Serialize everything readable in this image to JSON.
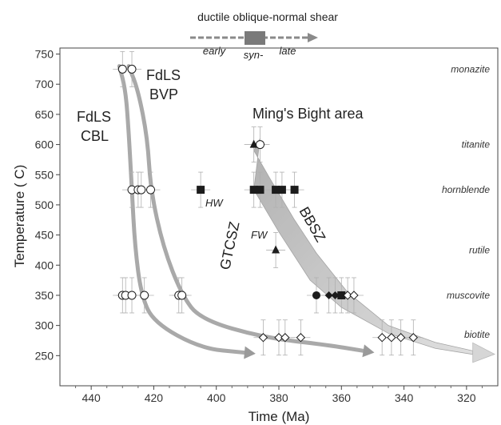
{
  "chart_data": {
    "type": "scatter",
    "title": "",
    "xlabel": "Time (Ma)",
    "ylabel": "Temperature ( C)",
    "xlim": [
      450,
      310
    ],
    "ylim": [
      200,
      760
    ],
    "x_reversed": true,
    "xticks": [
      440,
      420,
      400,
      380,
      360,
      340,
      320
    ],
    "yticks": [
      250,
      300,
      350,
      400,
      450,
      500,
      550,
      600,
      650,
      700,
      750
    ],
    "xtick_labels": [
      "440",
      "420",
      "400",
      "380",
      "360",
      "340",
      "320"
    ],
    "ytick_labels": [
      "250",
      "300",
      "350",
      "400",
      "450",
      "500",
      "550",
      "600",
      "650",
      "700",
      "750"
    ],
    "minerals": [
      {
        "label": "monazite",
        "y": 725
      },
      {
        "label": "titanite",
        "y": 600
      },
      {
        "label": "hornblende",
        "y": 525
      },
      {
        "label": "rutile",
        "y": 425
      },
      {
        "label": "muscovite",
        "y": 350
      },
      {
        "label": "biotite",
        "y": 285
      }
    ],
    "shear_legend": {
      "title": "ductile oblique-normal shear",
      "stages": [
        "early",
        "syn-",
        "late"
      ]
    },
    "annotations": {
      "fdls_cbl": [
        "FdLS",
        "CBL"
      ],
      "fdls_bvp": [
        "FdLS",
        "BVP"
      ],
      "mings_bight": "Ming's Bight area",
      "gtcsz": "GTCSZ",
      "bbsz": "BBSZ",
      "hw": "HW",
      "fw": "FW"
    },
    "colors": {
      "path": "#9a9a9a",
      "band": "#bdbdbd",
      "marker": "#1c1c1c",
      "errorbar": "#b0b0b0"
    },
    "series": [
      {
        "name": "FdLS CBL",
        "marker": "open-circle",
        "points": [
          {
            "x": 430,
            "y": 725
          },
          {
            "x": 427,
            "y": 725
          },
          {
            "x": 427,
            "y": 525
          },
          {
            "x": 425,
            "y": 525
          },
          {
            "x": 424,
            "y": 525
          },
          {
            "x": 430,
            "y": 350
          },
          {
            "x": 429,
            "y": 350
          },
          {
            "x": 427,
            "y": 350
          },
          {
            "x": 423,
            "y": 350
          }
        ]
      },
      {
        "name": "FdLS BVP",
        "marker": "open-circle",
        "points": [
          {
            "x": 421,
            "y": 525
          },
          {
            "x": 412,
            "y": 350
          },
          {
            "x": 411,
            "y": 350
          }
        ]
      },
      {
        "name": "GTCSZ",
        "marker": "open-diamond",
        "points": [
          {
            "x": 385,
            "y": 280
          },
          {
            "x": 380,
            "y": 280
          },
          {
            "x": 378,
            "y": 280
          },
          {
            "x": 373,
            "y": 280
          }
        ]
      },
      {
        "name": "HW",
        "marker": "filled-square",
        "points": [
          {
            "x": 405,
            "y": 525
          }
        ]
      },
      {
        "name": "Ming's Bight hornblende",
        "marker": "filled-square",
        "points": [
          {
            "x": 388,
            "y": 525
          },
          {
            "x": 386,
            "y": 525
          },
          {
            "x": 381,
            "y": 525
          },
          {
            "x": 379,
            "y": 525
          },
          {
            "x": 375,
            "y": 525
          }
        ]
      },
      {
        "name": "Ming's Bight titanite",
        "marker": "mixed",
        "points": [
          {
            "x": 388,
            "y": 600,
            "shape": "filled-triangle"
          },
          {
            "x": 386,
            "y": 600,
            "shape": "open-circle"
          }
        ]
      },
      {
        "name": "Ming's Bight rutile",
        "marker": "filled-triangle",
        "points": [
          {
            "x": 381,
            "y": 425
          }
        ]
      },
      {
        "name": "Ming's Bight muscovite",
        "marker": "mixed",
        "points": [
          {
            "x": 368,
            "y": 350,
            "shape": "filled-circle"
          },
          {
            "x": 364,
            "y": 350,
            "shape": "filled-diamond"
          },
          {
            "x": 362,
            "y": 350,
            "shape": "filled-diamond"
          },
          {
            "x": 360,
            "y": 350,
            "shape": "filled-square"
          },
          {
            "x": 358,
            "y": 350,
            "shape": "open-diamond"
          },
          {
            "x": 356,
            "y": 350,
            "shape": "open-diamond"
          }
        ]
      },
      {
        "name": "Ming's Bight biotite",
        "marker": "open-diamond",
        "points": [
          {
            "x": 347,
            "y": 280
          },
          {
            "x": 344,
            "y": 280
          },
          {
            "x": 341,
            "y": 280
          },
          {
            "x": 337,
            "y": 280
          }
        ]
      }
    ],
    "paths": [
      {
        "name": "FdLS CBL path",
        "points": [
          [
            431,
            730
          ],
          [
            429,
            690
          ],
          [
            428,
            620
          ],
          [
            427,
            525
          ],
          [
            426,
            430
          ],
          [
            424,
            350
          ],
          [
            420,
            305
          ],
          [
            405,
            262
          ],
          [
            391,
            255
          ]
        ]
      },
      {
        "name": "FdLS BVP path",
        "points": [
          [
            428,
            730
          ],
          [
            425,
            690
          ],
          [
            422,
            610
          ],
          [
            421,
            525
          ],
          [
            417,
            430
          ],
          [
            411,
            350
          ],
          [
            405,
            310
          ],
          [
            385,
            280
          ],
          [
            365,
            268
          ],
          [
            353,
            258
          ]
        ]
      }
    ],
    "band": {
      "name": "Ming's Bight cooling band",
      "upper": [
        [
          388,
          590
        ],
        [
          383,
          545
        ],
        [
          375,
          475
        ],
        [
          368,
          420
        ],
        [
          358,
          355
        ],
        [
          345,
          300
        ],
        [
          330,
          272
        ],
        [
          318,
          258
        ]
      ],
      "lower": [
        [
          386,
          610
        ],
        [
          388,
          525
        ],
        [
          380,
          455
        ],
        [
          370,
          375
        ],
        [
          360,
          330
        ],
        [
          345,
          287
        ],
        [
          330,
          262
        ],
        [
          318,
          252
        ]
      ]
    }
  }
}
